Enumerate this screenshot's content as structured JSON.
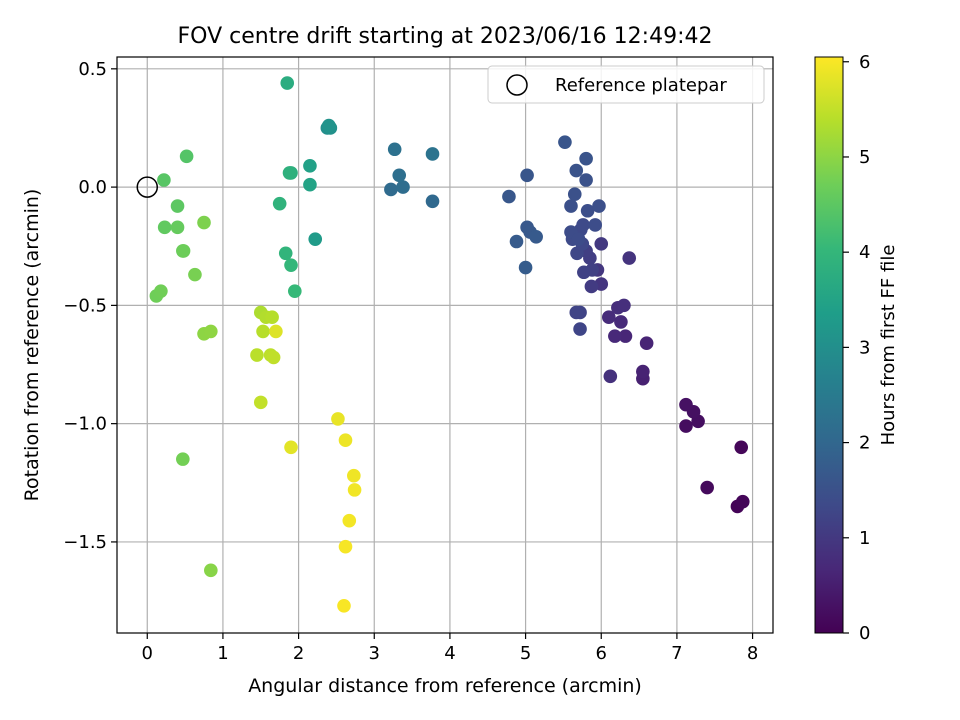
{
  "chart_data": {
    "type": "scatter",
    "title": "FOV centre drift starting at 2023/06/16 12:49:42",
    "xlabel": "Angular distance from reference (arcmin)",
    "ylabel": "Rotation from reference (arcmin)",
    "xlim": [
      -0.4,
      8.27
    ],
    "ylim": [
      -1.885,
      0.55
    ],
    "xticks": [
      0,
      1,
      2,
      3,
      4,
      5,
      6,
      7,
      8
    ],
    "xtick_labels": [
      "0",
      "1",
      "2",
      "3",
      "4",
      "5",
      "6",
      "7",
      "8"
    ],
    "yticks": [
      0.5,
      0.0,
      -0.5,
      -1.0,
      -1.5
    ],
    "ytick_labels": [
      "0.5",
      "0.0",
      "−0.5",
      "−1.0",
      "−1.5"
    ],
    "grid": true,
    "legend": {
      "placement": "top-right",
      "entries": [
        "Reference platepar"
      ]
    },
    "reference_point": {
      "x": 0.0,
      "y": 0.0,
      "label": "Reference platepar"
    },
    "colorbar": {
      "label": "Hours from first FF file",
      "min": 0,
      "max": 6.05,
      "ticks": [
        0,
        1,
        2,
        3,
        4,
        5,
        6
      ],
      "tick_labels": [
        "0",
        "1",
        "2",
        "3",
        "4",
        "5",
        "6"
      ],
      "colormap": "viridis",
      "colors": [
        "#440154",
        "#482878",
        "#3e4a89",
        "#31688e",
        "#26828e",
        "#1f9e89",
        "#35b779",
        "#6ece58",
        "#b5de2b",
        "#fde725"
      ]
    },
    "points": [
      {
        "x": 7.8,
        "y": -1.35,
        "h": 0.05
      },
      {
        "x": 7.87,
        "y": -1.33,
        "h": 0.08
      },
      {
        "x": 7.85,
        "y": -1.1,
        "h": 0.1
      },
      {
        "x": 7.4,
        "y": -1.27,
        "h": 0.15
      },
      {
        "x": 7.12,
        "y": -1.01,
        "h": 0.2
      },
      {
        "x": 7.28,
        "y": -0.99,
        "h": 0.22
      },
      {
        "x": 7.22,
        "y": -0.95,
        "h": 0.25
      },
      {
        "x": 7.12,
        "y": -0.92,
        "h": 0.28
      },
      {
        "x": 6.55,
        "y": -0.81,
        "h": 0.55
      },
      {
        "x": 6.55,
        "y": -0.78,
        "h": 0.58
      },
      {
        "x": 6.6,
        "y": -0.66,
        "h": 0.62
      },
      {
        "x": 6.32,
        "y": -0.63,
        "h": 0.66
      },
      {
        "x": 6.18,
        "y": -0.63,
        "h": 0.7
      },
      {
        "x": 6.26,
        "y": -0.57,
        "h": 0.72
      },
      {
        "x": 6.1,
        "y": -0.55,
        "h": 0.76
      },
      {
        "x": 6.22,
        "y": -0.51,
        "h": 0.8
      },
      {
        "x": 6.3,
        "y": -0.5,
        "h": 0.82
      },
      {
        "x": 6.12,
        "y": -0.8,
        "h": 0.85
      },
      {
        "x": 6.37,
        "y": -0.3,
        "h": 0.9
      },
      {
        "x": 6.0,
        "y": -0.41,
        "h": 0.93
      },
      {
        "x": 5.95,
        "y": -0.35,
        "h": 0.96
      },
      {
        "x": 6.0,
        "y": -0.24,
        "h": 1.0
      },
      {
        "x": 5.87,
        "y": -0.42,
        "h": 1.05
      },
      {
        "x": 5.85,
        "y": -0.3,
        "h": 1.1
      },
      {
        "x": 5.8,
        "y": -0.27,
        "h": 1.12
      },
      {
        "x": 5.88,
        "y": -0.35,
        "h": 1.15
      },
      {
        "x": 5.77,
        "y": -0.36,
        "h": 1.18
      },
      {
        "x": 5.72,
        "y": -0.53,
        "h": 1.2
      },
      {
        "x": 5.67,
        "y": -0.53,
        "h": 1.22
      },
      {
        "x": 5.72,
        "y": -0.6,
        "h": 1.25
      },
      {
        "x": 5.68,
        "y": -0.28,
        "h": 1.28
      },
      {
        "x": 5.75,
        "y": -0.24,
        "h": 1.3
      },
      {
        "x": 5.73,
        "y": -0.18,
        "h": 1.32
      },
      {
        "x": 5.76,
        "y": -0.16,
        "h": 1.34
      },
      {
        "x": 5.62,
        "y": -0.22,
        "h": 1.36
      },
      {
        "x": 5.6,
        "y": -0.19,
        "h": 1.38
      },
      {
        "x": 5.7,
        "y": -0.22,
        "h": 1.4
      },
      {
        "x": 5.92,
        "y": -0.16,
        "h": 1.42
      },
      {
        "x": 5.82,
        "y": -0.1,
        "h": 1.44
      },
      {
        "x": 5.97,
        "y": -0.08,
        "h": 1.46
      },
      {
        "x": 5.6,
        "y": -0.08,
        "h": 1.48
      },
      {
        "x": 5.65,
        "y": -0.03,
        "h": 1.5
      },
      {
        "x": 5.8,
        "y": 0.03,
        "h": 1.52
      },
      {
        "x": 5.67,
        "y": 0.07,
        "h": 1.54
      },
      {
        "x": 5.8,
        "y": 0.12,
        "h": 1.56
      },
      {
        "x": 5.52,
        "y": 0.19,
        "h": 1.58
      },
      {
        "x": 5.02,
        "y": 0.05,
        "h": 1.62
      },
      {
        "x": 4.78,
        "y": -0.04,
        "h": 1.64
      },
      {
        "x": 5.02,
        "y": -0.17,
        "h": 1.66
      },
      {
        "x": 5.06,
        "y": -0.19,
        "h": 1.68
      },
      {
        "x": 5.14,
        "y": -0.21,
        "h": 1.7
      },
      {
        "x": 4.88,
        "y": -0.23,
        "h": 1.72
      },
      {
        "x": 5.0,
        "y": -0.34,
        "h": 1.74
      },
      {
        "x": 3.77,
        "y": -0.06,
        "h": 2.05
      },
      {
        "x": 3.22,
        "y": -0.01,
        "h": 2.1
      },
      {
        "x": 3.38,
        "y": 0.0,
        "h": 2.15
      },
      {
        "x": 3.33,
        "y": 0.05,
        "h": 2.2
      },
      {
        "x": 3.27,
        "y": 0.16,
        "h": 2.25
      },
      {
        "x": 3.77,
        "y": 0.14,
        "h": 2.3
      },
      {
        "x": 2.38,
        "y": 0.25,
        "h": 3.0
      },
      {
        "x": 2.42,
        "y": 0.25,
        "h": 3.05
      },
      {
        "x": 2.4,
        "y": 0.26,
        "h": 3.1
      },
      {
        "x": 2.22,
        "y": -0.22,
        "h": 3.3
      },
      {
        "x": 2.15,
        "y": 0.09,
        "h": 3.45
      },
      {
        "x": 2.15,
        "y": 0.01,
        "h": 3.5
      },
      {
        "x": 1.85,
        "y": 0.44,
        "h": 3.75
      },
      {
        "x": 1.9,
        "y": 0.06,
        "h": 3.8
      },
      {
        "x": 1.88,
        "y": 0.06,
        "h": 3.85
      },
      {
        "x": 1.75,
        "y": -0.07,
        "h": 3.9
      },
      {
        "x": 1.83,
        "y": -0.28,
        "h": 3.95
      },
      {
        "x": 1.9,
        "y": -0.33,
        "h": 4.0
      },
      {
        "x": 1.95,
        "y": -0.44,
        "h": 4.05
      },
      {
        "x": 0.52,
        "y": 0.13,
        "h": 4.4
      },
      {
        "x": 0.22,
        "y": 0.03,
        "h": 4.45
      },
      {
        "x": 0.4,
        "y": -0.08,
        "h": 4.5
      },
      {
        "x": 0.23,
        "y": -0.17,
        "h": 4.55
      },
      {
        "x": 0.4,
        "y": -0.17,
        "h": 4.6
      },
      {
        "x": 0.47,
        "y": -0.27,
        "h": 4.65
      },
      {
        "x": 0.48,
        "y": -0.27,
        "h": 4.68
      },
      {
        "x": 0.12,
        "y": -0.46,
        "h": 4.7
      },
      {
        "x": 0.18,
        "y": -0.44,
        "h": 4.72
      },
      {
        "x": 0.63,
        "y": -0.37,
        "h": 4.8
      },
      {
        "x": 0.75,
        "y": -0.15,
        "h": 4.85
      },
      {
        "x": 0.47,
        "y": -1.15,
        "h": 4.75
      },
      {
        "x": 0.84,
        "y": -1.62,
        "h": 4.95
      },
      {
        "x": 0.75,
        "y": -0.62,
        "h": 5.0
      },
      {
        "x": 0.84,
        "y": -0.61,
        "h": 5.02
      },
      {
        "x": 1.5,
        "y": -0.53,
        "h": 5.3
      },
      {
        "x": 1.57,
        "y": -0.55,
        "h": 5.35
      },
      {
        "x": 1.65,
        "y": -0.55,
        "h": 5.38
      },
      {
        "x": 1.53,
        "y": -0.61,
        "h": 5.4
      },
      {
        "x": 1.45,
        "y": -0.71,
        "h": 5.42
      },
      {
        "x": 1.63,
        "y": -0.71,
        "h": 5.45
      },
      {
        "x": 1.67,
        "y": -0.72,
        "h": 5.48
      },
      {
        "x": 1.7,
        "y": -0.61,
        "h": 5.75
      },
      {
        "x": 1.5,
        "y": -0.91,
        "h": 5.5
      },
      {
        "x": 1.9,
        "y": -1.1,
        "h": 5.8
      },
      {
        "x": 2.52,
        "y": -0.98,
        "h": 5.85
      },
      {
        "x": 2.62,
        "y": -1.07,
        "h": 5.9
      },
      {
        "x": 2.73,
        "y": -1.22,
        "h": 5.92
      },
      {
        "x": 2.74,
        "y": -1.28,
        "h": 5.94
      },
      {
        "x": 2.67,
        "y": -1.41,
        "h": 5.96
      },
      {
        "x": 2.62,
        "y": -1.52,
        "h": 5.98
      },
      {
        "x": 2.6,
        "y": -1.77,
        "h": 6.0
      }
    ]
  }
}
